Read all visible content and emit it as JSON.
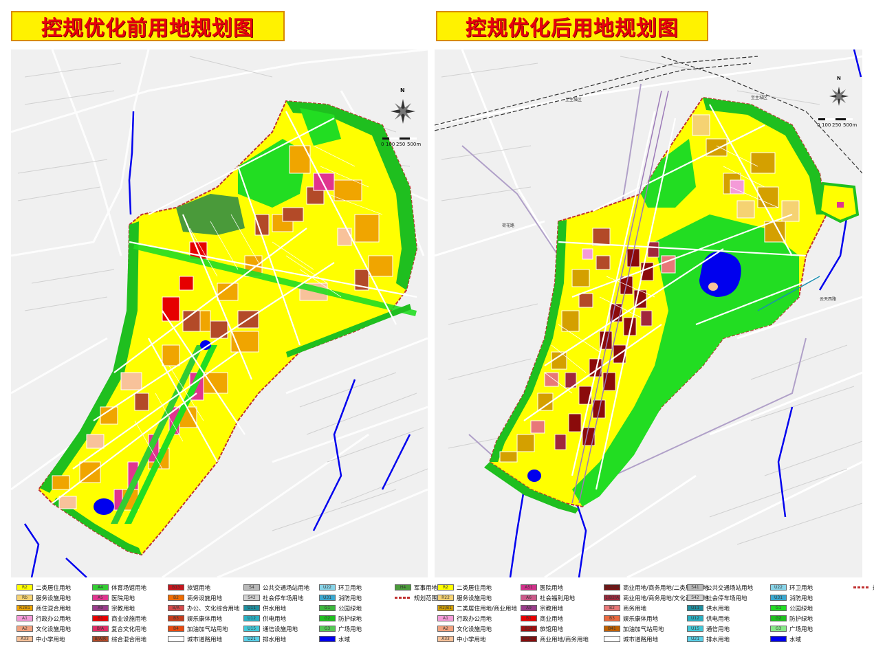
{
  "left_panel": {
    "title": "控规优化前用地规划图",
    "scale_labels": [
      "0",
      "100",
      "250",
      "500m"
    ],
    "north_label": "N",
    "legend": [
      {
        "code": "R2",
        "label": "二类居住用地",
        "color": "#ffff00"
      },
      {
        "code": "Rb",
        "label": "服务设施用地",
        "color": "#f5d272"
      },
      {
        "code": "R2B1",
        "label": "商住混合用地",
        "color": "#f0a500"
      },
      {
        "code": "A1",
        "label": "行政办公用地",
        "color": "#f49ad8"
      },
      {
        "code": "A2",
        "label": "文化设施用地",
        "color": "#f2a27e"
      },
      {
        "code": "A33",
        "label": "中小学用地",
        "color": "#f8c29a"
      },
      {
        "code": "A4",
        "label": "体育场馆用地",
        "color": "#33cc33"
      },
      {
        "code": "A5",
        "label": "医院用地",
        "color": "#e0358f"
      },
      {
        "code": "A9",
        "label": "宗教用地",
        "color": "#9a3d8b"
      },
      {
        "code": "B1",
        "label": "商业设施用地",
        "color": "#e60000"
      },
      {
        "code": "B/A",
        "label": "复合文化用地",
        "color": "#e02d64"
      },
      {
        "code": "B/A/R",
        "label": "综合混合用地",
        "color": "#b34a28"
      },
      {
        "code": "B13",
        "label": "旅馆用地",
        "color": "#c4151c"
      },
      {
        "code": "B2",
        "label": "商务设施用地",
        "color": "#ef6c00"
      },
      {
        "code": "B/A",
        "label": "办公、文化综合用地",
        "color": "#d64a4a"
      },
      {
        "code": "B3",
        "label": "娱乐康体用地",
        "color": "#c43c1c"
      },
      {
        "code": "B4",
        "label": "加油加气站用地",
        "color": "#e84a10"
      },
      {
        "code": "",
        "label": "城市道路用地",
        "color": "#ffffff"
      },
      {
        "code": "S4",
        "label": "公共交通场站用地",
        "color": "#b8b8b8"
      },
      {
        "code": "S42",
        "label": "社会停车场用地",
        "color": "#d0d0d0"
      },
      {
        "code": "U11",
        "label": "供水用地",
        "color": "#1f8f9f"
      },
      {
        "code": "U12",
        "label": "供电用地",
        "color": "#2ab0c2"
      },
      {
        "code": "U15",
        "label": "通信设施用地",
        "color": "#42c8d8"
      },
      {
        "code": "U21",
        "label": "排水用地",
        "color": "#5ad0e8"
      },
      {
        "code": "U22",
        "label": "环卫用地",
        "color": "#88d4e8"
      },
      {
        "code": "U31",
        "label": "消防用地",
        "color": "#3aa8d0"
      },
      {
        "code": "G1",
        "label": "公园绿地",
        "color": "#3cb83c"
      },
      {
        "code": "G2",
        "label": "防护绿地",
        "color": "#1fbf1f"
      },
      {
        "code": "G3",
        "label": "广场用地",
        "color": "#55c855"
      },
      {
        "code": "",
        "label": "水域",
        "color": "#0000ee"
      },
      {
        "code": "H4",
        "label": "军事用地",
        "color": "#4a9a3a"
      },
      {
        "code": "",
        "label": "规划范围",
        "color": "#ffffff"
      }
    ]
  },
  "right_panel": {
    "title": "控规优化后用地规划图",
    "scale_labels": [
      "0",
      "100",
      "250",
      "500m"
    ],
    "north_label": "N",
    "legend": [
      {
        "code": "R2",
        "label": "二类居住用地",
        "color": "#ffff00"
      },
      {
        "code": "R22",
        "label": "服务设施用地",
        "color": "#f5d272"
      },
      {
        "code": "R2/B1",
        "label": "二类居住用地/商业用地",
        "color": "#d4a000"
      },
      {
        "code": "A1",
        "label": "行政办公用地",
        "color": "#f49ad8"
      },
      {
        "code": "A2",
        "label": "文化设施用地",
        "color": "#f2a27e"
      },
      {
        "code": "A33",
        "label": "中小学用地",
        "color": "#f8c29a"
      },
      {
        "code": "A51",
        "label": "医院用地",
        "color": "#d0308a"
      },
      {
        "code": "A6",
        "label": "社会福利用地",
        "color": "#cc5a8a"
      },
      {
        "code": "A9",
        "label": "宗教用地",
        "color": "#9a3d8b"
      },
      {
        "code": "B1",
        "label": "商业用地",
        "color": "#e60000"
      },
      {
        "code": "B14",
        "label": "旅馆用地",
        "color": "#a01010"
      },
      {
        "code": "B1/B2",
        "label": "商业用地/商务用地",
        "color": "#8b0b0b"
      },
      {
        "code": "B1/B2/R",
        "label": "商业用地/商务用地/二类居住用地",
        "color": "#7a1010"
      },
      {
        "code": "B1/B2/A2",
        "label": "商业用地/商务用地/文化设施用地",
        "color": "#a0283c"
      },
      {
        "code": "B2",
        "label": "商务用地",
        "color": "#e87878"
      },
      {
        "code": "B3",
        "label": "娱乐康体用地",
        "color": "#e86a40"
      },
      {
        "code": "B41",
        "label": "加油加气站用地",
        "color": "#c06000"
      },
      {
        "code": "",
        "label": "城市道路用地",
        "color": "#ffffff"
      },
      {
        "code": "S41",
        "label": "公共交通场站用地",
        "color": "#b8b8b8"
      },
      {
        "code": "S42",
        "label": "社会停车场用地",
        "color": "#d0d0d0"
      },
      {
        "code": "U11",
        "label": "供水用地",
        "color": "#1f8f9f"
      },
      {
        "code": "U12",
        "label": "供电用地",
        "color": "#2ab0c2"
      },
      {
        "code": "U15",
        "label": "通信用地",
        "color": "#42c8d8"
      },
      {
        "code": "U21",
        "label": "排水用地",
        "color": "#5ad0e8"
      },
      {
        "code": "U22",
        "label": "环卫用地",
        "color": "#88d4e8"
      },
      {
        "code": "U31",
        "label": "消防用地",
        "color": "#3aa8d0"
      },
      {
        "code": "G1",
        "label": "公园绿地",
        "color": "#22dd22"
      },
      {
        "code": "G2",
        "label": "防护绿地",
        "color": "#1fbf1f"
      },
      {
        "code": "G3",
        "label": "广场用地",
        "color": "#88e888"
      },
      {
        "code": "",
        "label": "水域",
        "color": "#0000ee"
      },
      {
        "code": "",
        "label": "规划用地界线",
        "color": "#ffffff"
      }
    ]
  },
  "colors": {
    "title_bg": "#fff200",
    "title_text": "#e8000c",
    "water": "#0000ee",
    "boundary": "#c03030",
    "green_buffer": "#22c922"
  }
}
